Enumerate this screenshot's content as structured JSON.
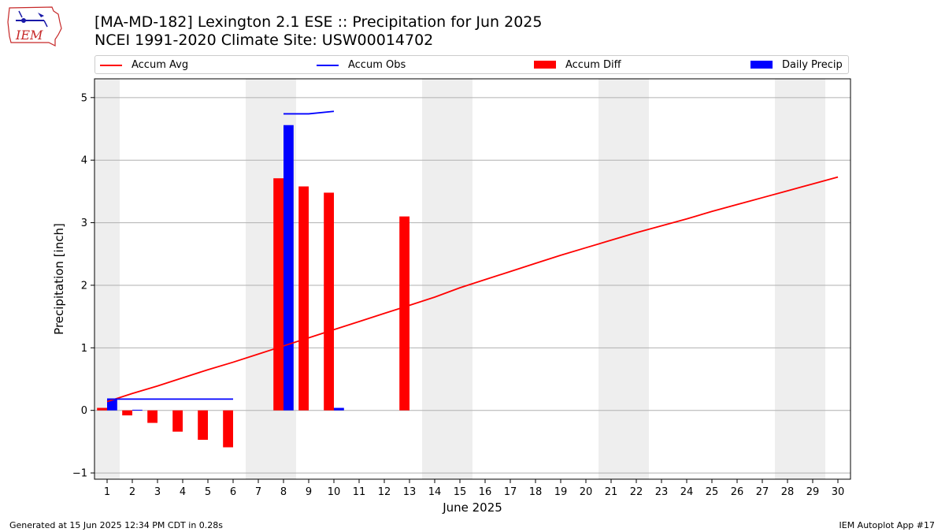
{
  "header": {
    "logo_text": "IEM",
    "title_line1": "[MA-MD-182] Lexington 2.1 ESE :: Precipitation for Jun 2025",
    "title_line2": "NCEI 1991-2020 Climate Site: USW00014702"
  },
  "footer": {
    "generated": "Generated at 15 Jun 2025 12:34 PM CDT in 0.28s",
    "app": "IEM Autoplot App #17"
  },
  "colors": {
    "avg": "#ff0000",
    "obs": "#0000ff",
    "diff": "#ff0000",
    "daily": "#0000ff",
    "weekend": "#eeeeee",
    "grid": "#b0b0b0"
  },
  "chart_data": {
    "type": "bar",
    "title": "",
    "xlabel": "June 2025",
    "ylabel": "Precipitation [inch]",
    "xlim": [
      0.5,
      30.5
    ],
    "ylim": [
      -1.1,
      5.3
    ],
    "yticks": [
      -1,
      0,
      1,
      2,
      3,
      4,
      5
    ],
    "xticks": [
      1,
      2,
      3,
      4,
      5,
      6,
      7,
      8,
      9,
      10,
      11,
      12,
      13,
      14,
      15,
      16,
      17,
      18,
      19,
      20,
      21,
      22,
      23,
      24,
      25,
      26,
      27,
      28,
      29,
      30
    ],
    "grid": "y",
    "legend_placement": "top",
    "weekend_shading": [
      [
        0.5,
        1.5
      ],
      [
        6.5,
        8.5
      ],
      [
        13.5,
        15.5
      ],
      [
        20.5,
        22.5
      ],
      [
        27.5,
        29.5
      ]
    ],
    "legend": [
      {
        "name": "Accum Avg",
        "kind": "line",
        "color": "#ff0000"
      },
      {
        "name": "Accum Obs",
        "kind": "line",
        "color": "#0000ff"
      },
      {
        "name": "Accum Diff",
        "kind": "box",
        "color": "#ff0000"
      },
      {
        "name": "Daily Precip",
        "kind": "box",
        "color": "#0000ff"
      }
    ],
    "series": [
      {
        "name": "Accum Avg",
        "type": "line",
        "x": [
          1,
          2,
          3,
          4,
          5,
          6,
          7,
          8,
          9,
          10,
          11,
          12,
          13,
          14,
          15,
          16,
          17,
          18,
          19,
          20,
          21,
          22,
          23,
          24,
          25,
          26,
          27,
          28,
          29,
          30
        ],
        "values": [
          0.14,
          0.27,
          0.39,
          0.52,
          0.65,
          0.77,
          0.9,
          1.03,
          1.16,
          1.29,
          1.42,
          1.55,
          1.68,
          1.81,
          1.96,
          2.09,
          2.22,
          2.35,
          2.48,
          2.6,
          2.72,
          2.84,
          2.95,
          3.06,
          3.18,
          3.29,
          3.4,
          3.51,
          3.62,
          3.73
        ]
      },
      {
        "name": "Accum Obs",
        "type": "line",
        "x": [
          1,
          2,
          3,
          4,
          5,
          6,
          7,
          8,
          9,
          10
        ],
        "values": [
          0.18,
          0.18,
          0.18,
          0.18,
          0.18,
          0.18,
          null,
          4.74,
          4.74,
          4.78
        ]
      },
      {
        "name": "Accum Diff",
        "type": "bar",
        "x": [
          1,
          2,
          3,
          4,
          5,
          6,
          8,
          9,
          10,
          13
        ],
        "values": [
          0.04,
          -0.08,
          -0.2,
          -0.34,
          -0.47,
          -0.59,
          3.71,
          3.58,
          3.48,
          3.1
        ]
      },
      {
        "name": "Daily Precip",
        "type": "bar",
        "x": [
          1,
          2,
          8,
          10
        ],
        "values": [
          0.18,
          0.01,
          4.56,
          0.04
        ]
      }
    ]
  }
}
